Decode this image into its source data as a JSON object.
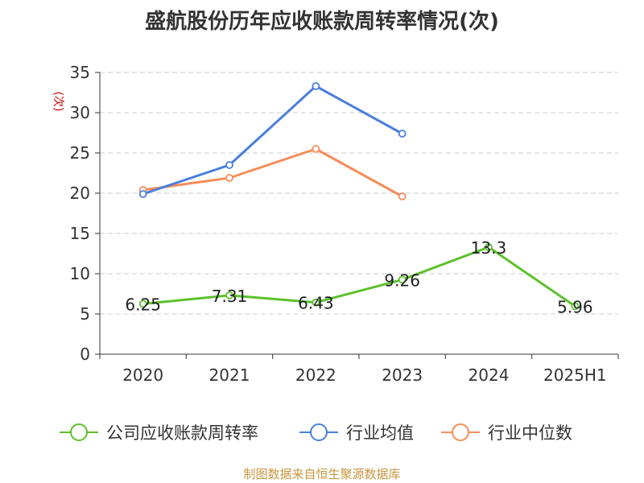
{
  "chart_data": {
    "type": "line",
    "title": "盛航股份历年应收账款周转率情况(次)",
    "ylabel": "(次)",
    "categories": [
      "2020",
      "2021",
      "2022",
      "2023",
      "2024",
      "2025H1"
    ],
    "y_ticks": [
      "0",
      "5",
      "10",
      "15",
      "20",
      "25",
      "30",
      "35"
    ],
    "ylim": [
      0,
      35
    ],
    "grid": true,
    "legend_position": "bottom",
    "series": [
      {
        "name": "公司应收账款周转率",
        "color": "#5cc12b",
        "values": [
          6.25,
          7.31,
          6.43,
          9.26,
          13.3,
          5.96
        ],
        "labels": [
          "6.25",
          "7.31",
          "6.43",
          "9.26",
          "13.3",
          "5.96"
        ]
      },
      {
        "name": "行业均值",
        "color": "#4a7fdc",
        "values": [
          19.9,
          23.5,
          33.3,
          27.4,
          null,
          null
        ]
      },
      {
        "name": "行业中位数",
        "color": "#f68d58",
        "values": [
          20.4,
          21.9,
          25.5,
          19.6,
          null,
          null
        ]
      }
    ]
  },
  "source_note": "制图数据来自恒生聚源数据库",
  "colors": {
    "unit_label": "#cc0000",
    "source_note": "#c8963e",
    "axis": "#333333",
    "grid": "#cccccc"
  }
}
